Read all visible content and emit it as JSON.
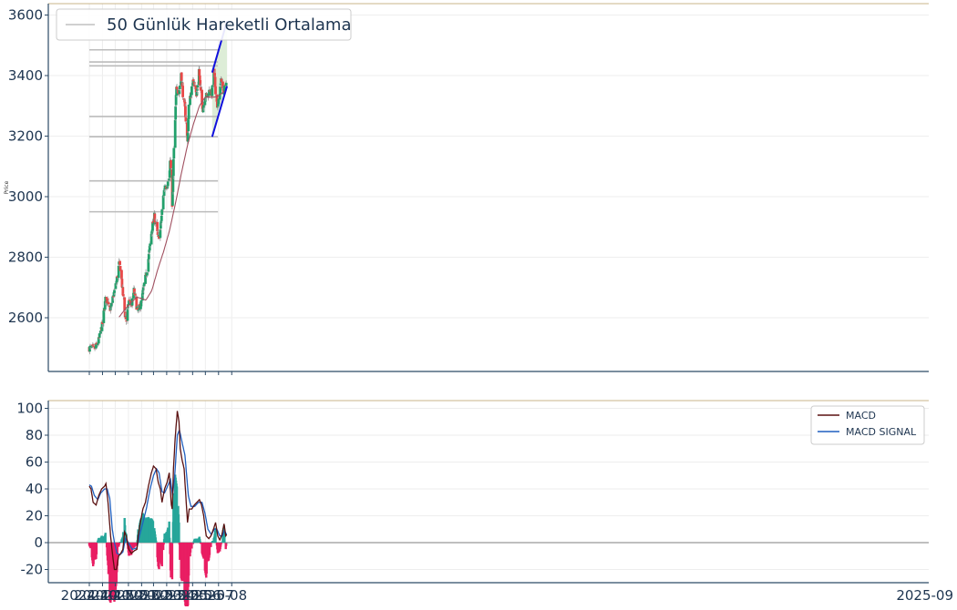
{
  "chart_data": [
    {
      "type": "candlestick",
      "ylabel": "Price",
      "ylim": [
        2440,
        3600
      ],
      "yticks": [
        2600,
        2800,
        3000,
        3200,
        3400,
        3600
      ],
      "legend": {
        "placement": "top-left",
        "entries": [
          {
            "label": "50 Günlük Hareketli Ortalama",
            "color": "#c0c0c0"
          }
        ]
      },
      "horizontal_levels": [
        3485,
        3445,
        3432,
        3265,
        3198,
        3052,
        2950
      ],
      "channel": {
        "upper_start": [
          "2025-07-17",
          3410
        ],
        "upper_end": [
          "2025-08-21",
          3580
        ],
        "lower_start": [
          "2025-07-17",
          3198
        ],
        "lower_end": [
          "2025-08-21",
          3365
        ],
        "fill_color": "#d7ead0",
        "line_color": "#1010dd"
      },
      "colors": {
        "up": "#22a06b",
        "down": "#e84848",
        "ma": "#a05060",
        "level": "#bbbbbb"
      },
      "anchors": [
        [
          "2024-10-01",
          2500
        ],
        [
          "2024-10-15",
          2498
        ],
        [
          "2024-10-22",
          2520
        ],
        [
          "2024-11-01",
          2580
        ],
        [
          "2024-11-08",
          2660
        ],
        [
          "2024-11-15",
          2655
        ],
        [
          "2024-11-20",
          2625
        ],
        [
          "2024-11-27",
          2675
        ],
        [
          "2024-12-04",
          2720
        ],
        [
          "2024-12-10",
          2778
        ],
        [
          "2024-12-14",
          2760
        ],
        [
          "2024-12-18",
          2690
        ],
        [
          "2024-12-24",
          2610
        ],
        [
          "2024-12-27",
          2590
        ],
        [
          "2025-01-02",
          2655
        ],
        [
          "2025-01-09",
          2645
        ],
        [
          "2025-01-14",
          2690
        ],
        [
          "2025-01-21",
          2630
        ],
        [
          "2025-01-24",
          2620
        ],
        [
          "2025-01-31",
          2650
        ],
        [
          "2025-02-07",
          2710
        ],
        [
          "2025-02-14",
          2760
        ],
        [
          "2025-02-20",
          2830
        ],
        [
          "2025-02-26",
          2900
        ],
        [
          "2025-03-03",
          2935
        ],
        [
          "2025-03-07",
          2905
        ],
        [
          "2025-03-12",
          2860
        ],
        [
          "2025-03-17",
          2890
        ],
        [
          "2025-03-24",
          3000
        ],
        [
          "2025-03-28",
          3040
        ],
        [
          "2025-04-01",
          3035
        ],
        [
          "2025-04-07",
          3060
        ],
        [
          "2025-04-10",
          3130
        ],
        [
          "2025-04-14",
          2960
        ],
        [
          "2025-04-17",
          3120
        ],
        [
          "2025-04-21",
          3250
        ],
        [
          "2025-04-24",
          3370
        ],
        [
          "2025-04-30",
          3340
        ],
        [
          "2025-05-05",
          3410
        ],
        [
          "2025-05-09",
          3340
        ],
        [
          "2025-05-14",
          3290
        ],
        [
          "2025-05-20",
          3180
        ],
        [
          "2025-05-23",
          3300
        ],
        [
          "2025-05-29",
          3350
        ],
        [
          "2025-06-04",
          3390
        ],
        [
          "2025-06-10",
          3330
        ],
        [
          "2025-06-16",
          3420
        ],
        [
          "2025-06-20",
          3340
        ],
        [
          "2025-06-25",
          3290
        ],
        [
          "2025-07-01",
          3335
        ],
        [
          "2025-07-07",
          3330
        ],
        [
          "2025-07-11",
          3355
        ],
        [
          "2025-07-16",
          3340
        ],
        [
          "2025-07-21",
          3415
        ],
        [
          "2025-07-25",
          3350
        ],
        [
          "2025-07-30",
          3290
        ],
        [
          "2025-08-04",
          3350
        ],
        [
          "2025-08-08",
          3390
        ],
        [
          "2025-08-12",
          3345
        ],
        [
          "2025-08-18",
          3380
        ]
      ],
      "ma_anchors": [
        [
          "2024-12-10",
          2602
        ],
        [
          "2024-12-24",
          2628
        ],
        [
          "2025-01-07",
          2650
        ],
        [
          "2025-01-21",
          2668
        ],
        [
          "2025-02-04",
          2662
        ],
        [
          "2025-02-11",
          2658
        ],
        [
          "2025-02-25",
          2690
        ],
        [
          "2025-03-11",
          2760
        ],
        [
          "2025-03-25",
          2820
        ],
        [
          "2025-04-08",
          2890
        ],
        [
          "2025-04-22",
          2980
        ],
        [
          "2025-05-06",
          3080
        ],
        [
          "2025-05-20",
          3170
        ],
        [
          "2025-06-03",
          3240
        ],
        [
          "2025-06-17",
          3300
        ],
        [
          "2025-07-01",
          3330
        ],
        [
          "2025-07-15",
          3328
        ],
        [
          "2025-07-29",
          3330
        ],
        [
          "2025-08-12",
          3345
        ],
        [
          "2025-08-18",
          3350
        ]
      ]
    },
    {
      "type": "line",
      "ylim": [
        -27,
        105
      ],
      "yticks": [
        -20,
        0,
        20,
        40,
        60,
        80,
        100
      ],
      "xticks": [
        "2024-10",
        "2024-11",
        "2024-12",
        "2025-01",
        "2025-02",
        "2025-03",
        "2025-04",
        "2025-05",
        "2025-06",
        "2025-07",
        "2025-08",
        "2025-09"
      ],
      "legend": {
        "placement": "top-right",
        "entries": [
          {
            "label": "MACD",
            "color": "#5a1010"
          },
          {
            "label": "MACD SIGNAL",
            "color": "#1f5fbf"
          }
        ]
      },
      "colors": {
        "hist_pos": "#26a69a",
        "hist_neg": "#e91e63"
      },
      "macd_anchors": [
        [
          "2024-10-01",
          42
        ],
        [
          "2024-10-05",
          40
        ],
        [
          "2024-10-10",
          30
        ],
        [
          "2024-10-17",
          28
        ],
        [
          "2024-10-23",
          35
        ],
        [
          "2024-10-30",
          40
        ],
        [
          "2024-11-06",
          42
        ],
        [
          "2024-11-09",
          44
        ],
        [
          "2024-11-14",
          30
        ],
        [
          "2024-11-20",
          5
        ],
        [
          "2024-11-25",
          -10
        ],
        [
          "2024-11-29",
          -20
        ],
        [
          "2024-12-04",
          -20
        ],
        [
          "2024-12-09",
          -10
        ],
        [
          "2024-12-14",
          -8
        ],
        [
          "2024-12-19",
          -5
        ],
        [
          "2024-12-23",
          8
        ],
        [
          "2024-12-27",
          5
        ],
        [
          "2025-01-02",
          -5
        ],
        [
          "2025-01-08",
          -8
        ],
        [
          "2025-01-15",
          -6
        ],
        [
          "2025-01-21",
          -5
        ],
        [
          "2025-01-24",
          5
        ],
        [
          "2025-01-29",
          15
        ],
        [
          "2025-02-04",
          25
        ],
        [
          "2025-02-10",
          30
        ],
        [
          "2025-02-17",
          42
        ],
        [
          "2025-02-24",
          52
        ],
        [
          "2025-03-01",
          57
        ],
        [
          "2025-03-07",
          55
        ],
        [
          "2025-03-12",
          45
        ],
        [
          "2025-03-17",
          40
        ],
        [
          "2025-03-21",
          30
        ],
        [
          "2025-03-27",
          40
        ],
        [
          "2025-04-02",
          45
        ],
        [
          "2025-04-07",
          52
        ],
        [
          "2025-04-12",
          28
        ],
        [
          "2025-04-14",
          25
        ],
        [
          "2025-04-17",
          55
        ],
        [
          "2025-04-21",
          78
        ],
        [
          "2025-04-26",
          98
        ],
        [
          "2025-04-30",
          90
        ],
        [
          "2025-05-03",
          70
        ],
        [
          "2025-05-07",
          62
        ],
        [
          "2025-05-12",
          55
        ],
        [
          "2025-05-16",
          35
        ],
        [
          "2025-05-20",
          15
        ],
        [
          "2025-05-24",
          25
        ],
        [
          "2025-05-30",
          25
        ],
        [
          "2025-06-05",
          28
        ],
        [
          "2025-06-11",
          30
        ],
        [
          "2025-06-17",
          32
        ],
        [
          "2025-06-22",
          28
        ],
        [
          "2025-06-27",
          20
        ],
        [
          "2025-07-03",
          5
        ],
        [
          "2025-07-09",
          3
        ],
        [
          "2025-07-14",
          5
        ],
        [
          "2025-07-20",
          10
        ],
        [
          "2025-07-25",
          15
        ],
        [
          "2025-07-30",
          5
        ],
        [
          "2025-08-04",
          2
        ],
        [
          "2025-08-09",
          6
        ],
        [
          "2025-08-14",
          14
        ],
        [
          "2025-08-18",
          5
        ],
        [
          "2025-08-20",
          6
        ]
      ],
      "signal_anchors": [
        [
          "2024-10-01",
          43
        ],
        [
          "2024-10-06",
          42
        ],
        [
          "2024-10-13",
          35
        ],
        [
          "2024-10-21",
          32
        ],
        [
          "2024-10-28",
          37
        ],
        [
          "2024-11-06",
          40
        ],
        [
          "2024-11-12",
          40
        ],
        [
          "2024-11-18",
          33
        ],
        [
          "2024-11-24",
          10
        ],
        [
          "2024-11-29",
          0
        ],
        [
          "2024-12-05",
          -8
        ],
        [
          "2024-12-12",
          -9
        ],
        [
          "2024-12-19",
          -7
        ],
        [
          "2024-12-25",
          3
        ],
        [
          "2025-01-01",
          0
        ],
        [
          "2025-01-10",
          -5
        ],
        [
          "2025-01-21",
          -4
        ],
        [
          "2025-01-27",
          5
        ],
        [
          "2025-02-04",
          15
        ],
        [
          "2025-02-12",
          25
        ],
        [
          "2025-02-21",
          40
        ],
        [
          "2025-03-01",
          50
        ],
        [
          "2025-03-08",
          55
        ],
        [
          "2025-03-14",
          52
        ],
        [
          "2025-03-21",
          38
        ],
        [
          "2025-03-27",
          37
        ],
        [
          "2025-04-03",
          42
        ],
        [
          "2025-04-10",
          47
        ],
        [
          "2025-04-15",
          35
        ],
        [
          "2025-04-20",
          50
        ],
        [
          "2025-04-26",
          80
        ],
        [
          "2025-05-01",
          84
        ],
        [
          "2025-05-07",
          75
        ],
        [
          "2025-05-14",
          65
        ],
        [
          "2025-05-22",
          35
        ],
        [
          "2025-05-28",
          27
        ],
        [
          "2025-06-06",
          27
        ],
        [
          "2025-06-15",
          30
        ],
        [
          "2025-06-23",
          30
        ],
        [
          "2025-06-30",
          22
        ],
        [
          "2025-07-07",
          10
        ],
        [
          "2025-07-15",
          6
        ],
        [
          "2025-07-22",
          10
        ],
        [
          "2025-07-28",
          10
        ],
        [
          "2025-08-04",
          5
        ],
        [
          "2025-08-10",
          5
        ],
        [
          "2025-08-15",
          9
        ],
        [
          "2025-08-20",
          6
        ]
      ]
    }
  ]
}
